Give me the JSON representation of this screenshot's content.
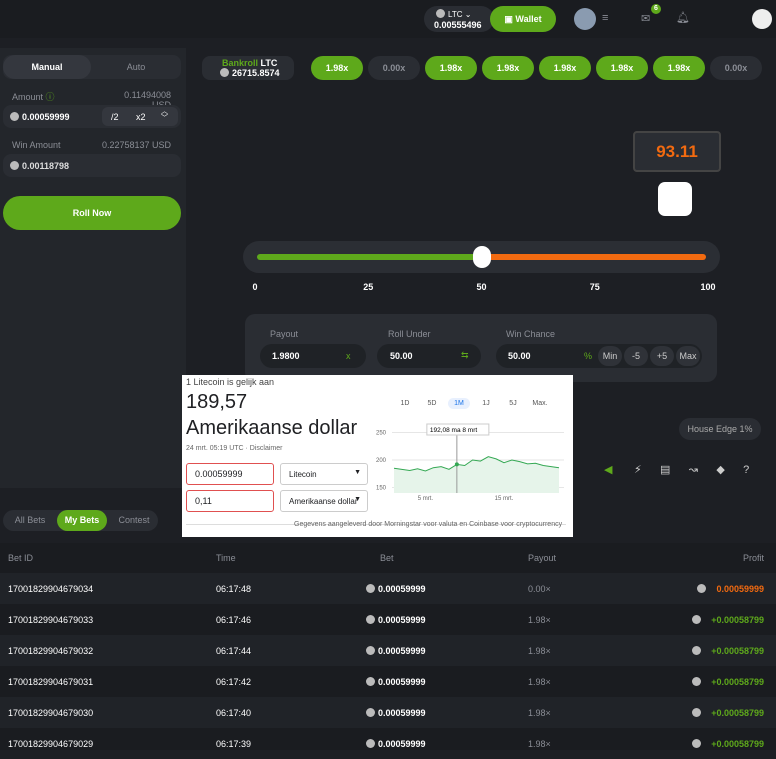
{
  "topbar": {
    "currency": "LTC",
    "balance": "0.00555496",
    "wallet": "Wallet",
    "notifications": "6"
  },
  "bet_panel": {
    "tabs": [
      "Manual",
      "Auto"
    ],
    "amount_label": "Amount",
    "amount_usd": "0.11494008 USD",
    "amount": "0.00059999",
    "half": "/2",
    "double": "x2",
    "win_label": "Win Amount",
    "win_usd": "0.22758137 USD",
    "win": "0.00118798",
    "roll": "Roll Now"
  },
  "bankroll": {
    "label": "Bankroll",
    "currency": "LTC",
    "value": "26715.8574"
  },
  "history": [
    {
      "label": "1.98x",
      "win": true
    },
    {
      "label": "0.00x",
      "win": false
    },
    {
      "label": "1.98x",
      "win": true
    },
    {
      "label": "1.98x",
      "win": true
    },
    {
      "label": "1.98x",
      "win": true
    },
    {
      "label": "1.98x",
      "win": true
    },
    {
      "label": "1.98x",
      "win": true
    },
    {
      "label": "0.00x",
      "win": false
    }
  ],
  "result": "93.11",
  "slider": {
    "ticks": [
      0,
      25,
      50,
      75,
      100
    ],
    "value": 50
  },
  "controls": {
    "payout_label": "Payout",
    "payout": "1.9800",
    "payout_unit": "x",
    "roll_label": "Roll Under",
    "roll": "50.00",
    "chance_label": "Win Chance",
    "chance": "50.00",
    "chance_unit": "%",
    "buttons": [
      "Min",
      "-5",
      "+5",
      "Max"
    ]
  },
  "house_edge": "House Edge 1%",
  "bet_tabs": [
    "All Bets",
    "My Bets",
    "Contest"
  ],
  "table": {
    "headers": [
      "Bet ID",
      "Time",
      "Bet",
      "Payout",
      "Profit"
    ],
    "rows": [
      [
        "17001829904679034",
        "06:17:48",
        "0.00059999",
        "0.00×",
        "0.00059999"
      ],
      [
        "17001829904679033",
        "06:17:46",
        "0.00059999",
        "1.98×",
        "+0.00058799"
      ],
      [
        "17001829904679032",
        "06:17:44",
        "0.00059999",
        "1.98×",
        "+0.00058799"
      ],
      [
        "17001829904679031",
        "06:17:42",
        "0.00059999",
        "1.98×",
        "+0.00058799"
      ],
      [
        "17001829904679030",
        "06:17:40",
        "0.00059999",
        "1.98×",
        "+0.00058799"
      ],
      [
        "17001829904679029",
        "06:17:39",
        "0.00059999",
        "1.98×",
        "+0.00058799"
      ]
    ]
  },
  "converter": {
    "heading": "1 Litecoin is gelijk aan",
    "value": "189,57",
    "currency": "Amerikaanse dollar",
    "date": "24 mrt. 05:19 UTC · Disclaimer",
    "ranges": [
      "1D",
      "5D",
      "1M",
      "1J",
      "5J",
      "Max."
    ],
    "input1": "0.00059999",
    "select1": "Litecoin",
    "input2": "0,11",
    "select2": "Amerikaanse dollar",
    "source": "Gegevens aangeleverd door Morningstar voor valuta en Coinbase voor cryptocurrency",
    "chart": {
      "ylim": [
        140,
        260
      ],
      "yticks": [
        150,
        200,
        250
      ],
      "values": [
        185,
        183,
        181,
        184,
        180,
        186,
        188,
        183,
        192,
        190,
        200,
        198,
        206,
        202,
        195,
        200,
        197,
        193,
        194,
        190,
        188,
        186
      ],
      "x_labels": [
        "5 mrt.",
        "15 mrt."
      ],
      "tooltip": "192,08 ma 8 mrt"
    }
  }
}
